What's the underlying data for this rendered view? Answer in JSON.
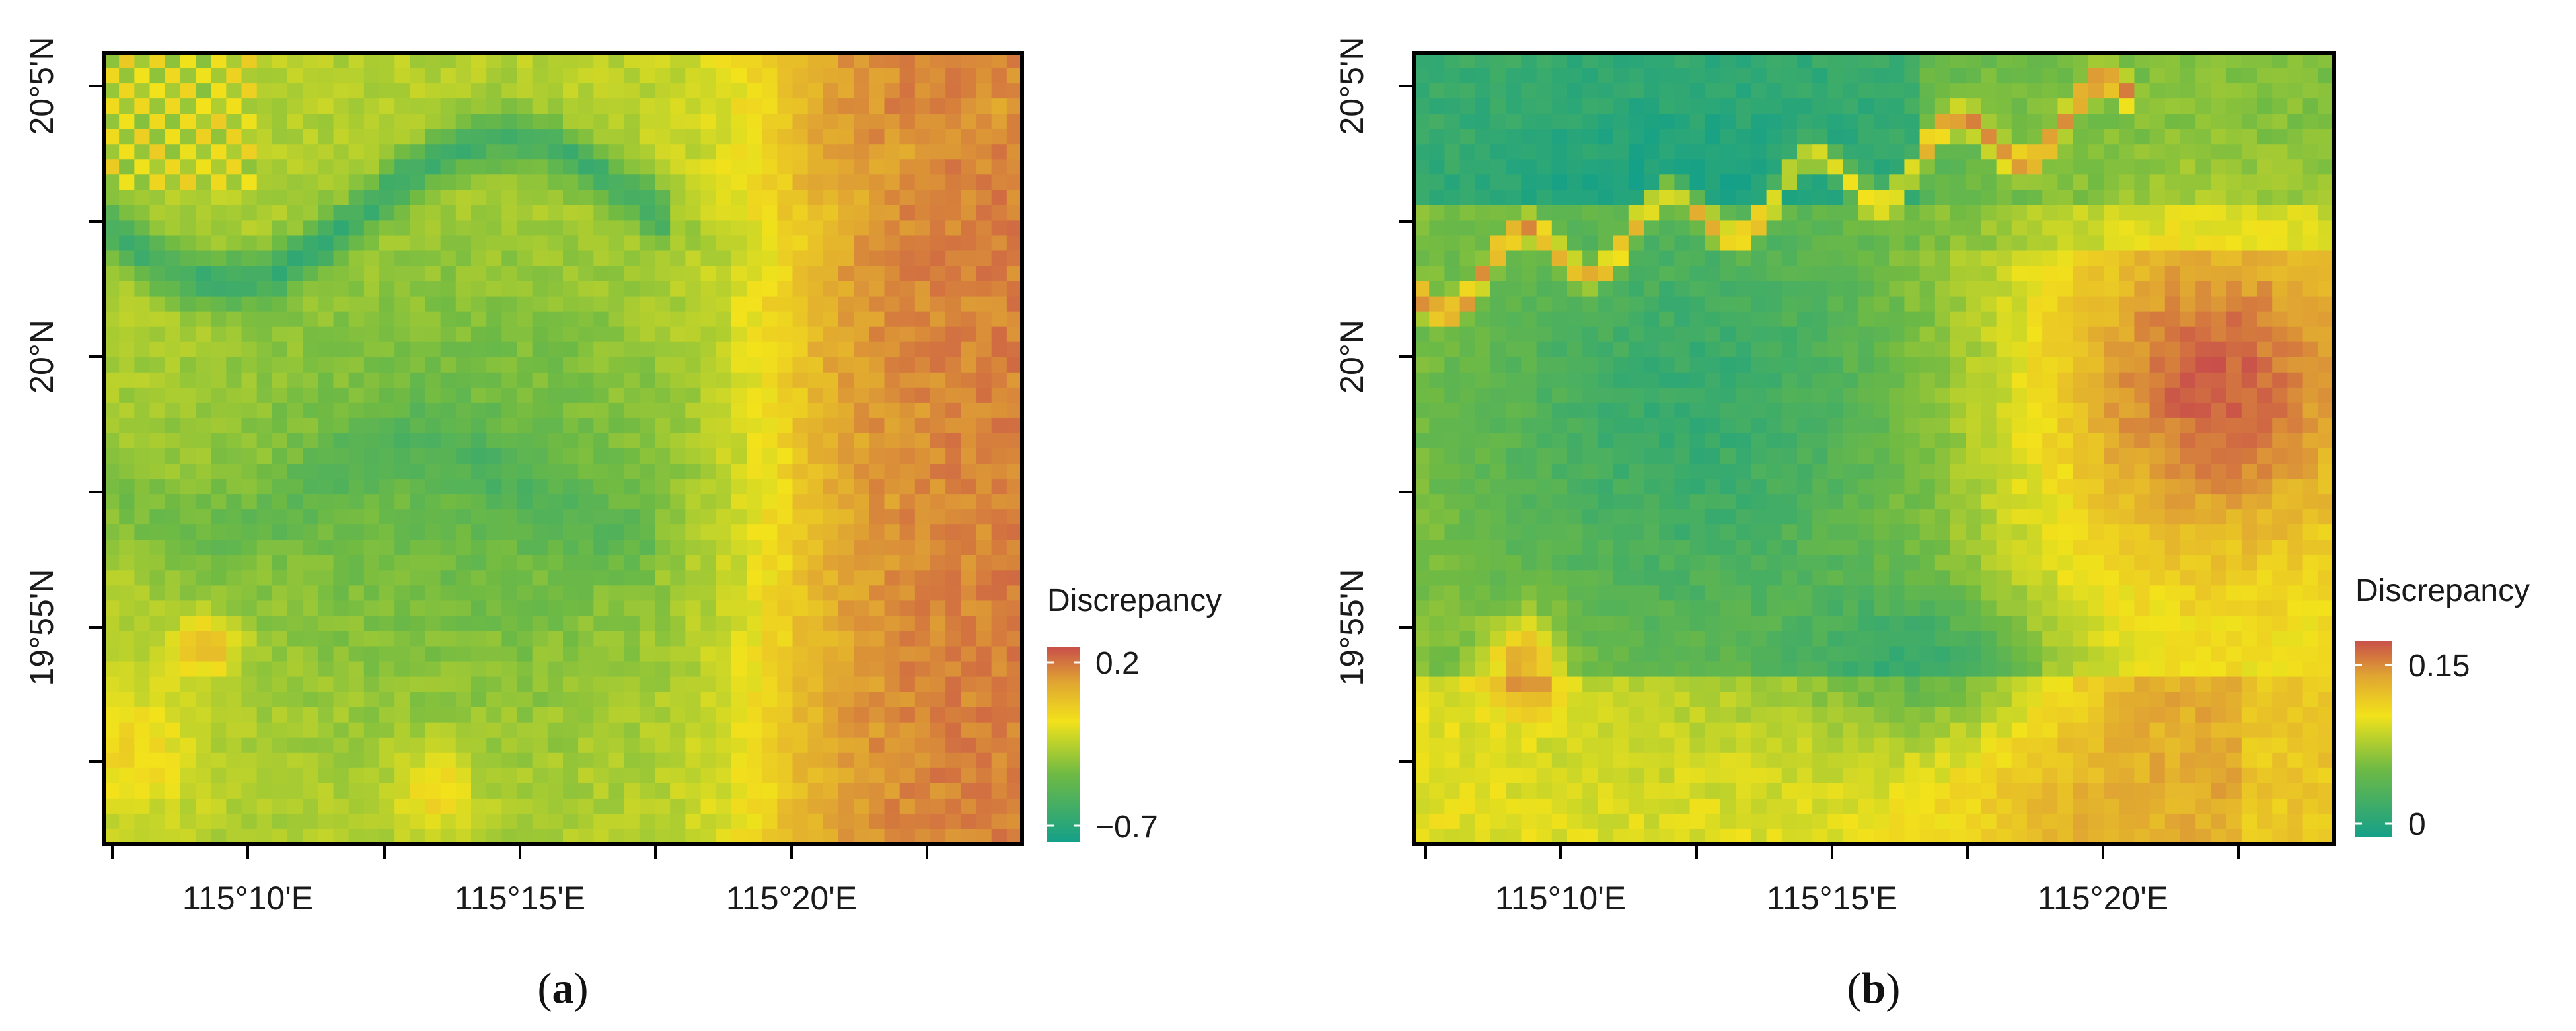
{
  "panels": [
    {
      "id": "a",
      "caption_open": "(",
      "caption_letter": "a",
      "caption_close": ")",
      "x_ticks": [
        {
          "label": ""
        },
        {
          "label": "115°10'E"
        },
        {
          "label": ""
        },
        {
          "label": "115°15'E"
        },
        {
          "label": ""
        },
        {
          "label": "115°20'E"
        },
        {
          "label": ""
        }
      ],
      "y_ticks": [
        {
          "label": "20°5'N"
        },
        {
          "label": ""
        },
        {
          "label": "20°N"
        },
        {
          "label": ""
        },
        {
          "label": "19°55'N"
        },
        {
          "label": ""
        }
      ],
      "legend": {
        "title": "Discrepancy",
        "max_label": "0.2",
        "min_label": "−0.7",
        "max_value": 0.2,
        "min_value": -0.7
      }
    },
    {
      "id": "b",
      "caption_open": "(",
      "caption_letter": "b",
      "caption_close": ")",
      "x_ticks": [
        {
          "label": ""
        },
        {
          "label": "115°10'E"
        },
        {
          "label": ""
        },
        {
          "label": "115°15'E"
        },
        {
          "label": ""
        },
        {
          "label": "115°20'E"
        },
        {
          "label": ""
        }
      ],
      "y_ticks": [
        {
          "label": "20°5'N"
        },
        {
          "label": ""
        },
        {
          "label": "20°N"
        },
        {
          "label": ""
        },
        {
          "label": "19°55'N"
        },
        {
          "label": ""
        }
      ],
      "legend": {
        "title": "Discrepancy",
        "max_label": "0.15",
        "min_label": "0",
        "max_value": 0.15,
        "min_value": 0
      }
    }
  ],
  "colors": {
    "low": "#14a089",
    "mid": "#6fba44",
    "high_mid": "#f2e21b",
    "high": "#c9504a",
    "frame": "#000000"
  }
}
